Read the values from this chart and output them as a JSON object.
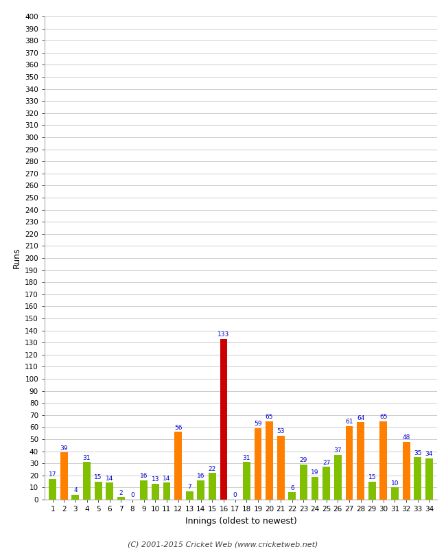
{
  "title": "",
  "xlabel": "Innings (oldest to newest)",
  "ylabel": "Runs",
  "values": [
    17,
    39,
    4,
    31,
    15,
    14,
    2,
    0,
    16,
    13,
    14,
    56,
    7,
    16,
    22,
    133,
    0,
    31,
    59,
    65,
    53,
    6,
    29,
    19,
    27,
    37,
    61,
    64,
    15,
    65,
    10,
    48,
    35,
    34
  ],
  "colors": [
    "#80c000",
    "#ff8000",
    "#80c000",
    "#80c000",
    "#80c000",
    "#80c000",
    "#80c000",
    "#80c000",
    "#80c000",
    "#80c000",
    "#80c000",
    "#ff8000",
    "#80c000",
    "#80c000",
    "#80c000",
    "#cc0000",
    "#80c000",
    "#80c000",
    "#ff8000",
    "#ff8000",
    "#ff8000",
    "#80c000",
    "#80c000",
    "#80c000",
    "#80c000",
    "#80c000",
    "#ff8000",
    "#ff8000",
    "#80c000",
    "#ff8000",
    "#80c000",
    "#ff8000",
    "#80c000",
    "#80c000"
  ],
  "ylim": [
    0,
    400
  ],
  "yticks": [
    0,
    10,
    20,
    30,
    40,
    50,
    60,
    70,
    80,
    90,
    100,
    110,
    120,
    130,
    140,
    150,
    160,
    170,
    180,
    190,
    200,
    210,
    220,
    230,
    240,
    250,
    260,
    270,
    280,
    290,
    300,
    310,
    320,
    330,
    340,
    350,
    360,
    370,
    380,
    390,
    400
  ],
  "background_color": "#ffffff",
  "grid_color": "#cccccc",
  "label_color": "#0000cc",
  "footer": "(C) 2001-2015 Cricket Web (www.cricketweb.net)",
  "bar_width": 0.65
}
